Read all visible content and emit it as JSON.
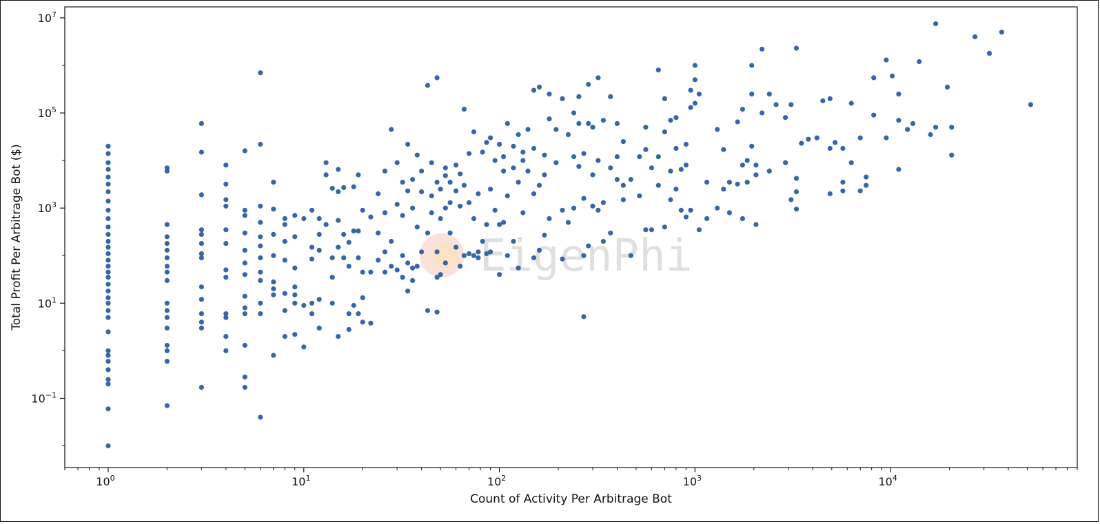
{
  "chart_data": {
    "type": "scatter",
    "xlabel": "Count of Activity Per Arbitrage Bot",
    "ylabel": "Total Profit Per Arbitrage Bot ($)",
    "x_scale": "log",
    "y_scale": "log",
    "xlim": [
      0.6,
      90000
    ],
    "ylim": [
      0.0035,
      17000000
    ],
    "x_ticks": [
      {
        "value": 1,
        "base": "10",
        "exp": "0"
      },
      {
        "value": 10,
        "base": "10",
        "exp": "1"
      },
      {
        "value": 100,
        "base": "10",
        "exp": "2"
      },
      {
        "value": 1000,
        "base": "10",
        "exp": "3"
      },
      {
        "value": 10000,
        "base": "10",
        "exp": "4"
      }
    ],
    "y_ticks": [
      {
        "value": 0.1,
        "base": "10",
        "exp": "−1"
      },
      {
        "value": 10,
        "base": "10",
        "exp": "1"
      },
      {
        "value": 1000,
        "base": "10",
        "exp": "3"
      },
      {
        "value": 100000,
        "base": "10",
        "exp": "5"
      },
      {
        "value": 10000000,
        "base": "10",
        "exp": "7"
      }
    ],
    "marker_color": "#3567a8",
    "grid": false,
    "watermark": "EigenPhi",
    "points": [
      [
        1,
        0.01
      ],
      [
        1,
        0.06
      ],
      [
        1,
        0.2
      ],
      [
        1,
        0.25
      ],
      [
        1,
        0.4
      ],
      [
        1,
        0.6
      ],
      [
        1,
        0.8
      ],
      [
        1,
        1
      ],
      [
        1,
        2.5
      ],
      [
        1,
        5
      ],
      [
        1,
        7
      ],
      [
        1,
        10
      ],
      [
        1,
        13
      ],
      [
        1,
        18
      ],
      [
        1,
        25
      ],
      [
        1,
        35
      ],
      [
        1,
        45
      ],
      [
        1,
        60
      ],
      [
        1,
        80
      ],
      [
        1,
        110
      ],
      [
        1,
        150
      ],
      [
        1,
        200
      ],
      [
        1,
        280
      ],
      [
        1,
        400
      ],
      [
        1,
        600
      ],
      [
        1,
        900
      ],
      [
        1,
        1400
      ],
      [
        1,
        2200
      ],
      [
        1,
        3200
      ],
      [
        1,
        4500
      ],
      [
        1,
        6500
      ],
      [
        1,
        9000
      ],
      [
        1,
        14000
      ],
      [
        1,
        20000
      ],
      [
        2,
        0.07
      ],
      [
        2,
        0.6
      ],
      [
        2,
        1
      ],
      [
        2,
        1.3
      ],
      [
        2,
        3
      ],
      [
        2,
        5
      ],
      [
        2,
        7
      ],
      [
        2,
        10
      ],
      [
        2,
        30
      ],
      [
        2,
        45
      ],
      [
        2,
        60
      ],
      [
        2,
        90
      ],
      [
        2,
        130
      ],
      [
        2,
        180
      ],
      [
        2,
        250
      ],
      [
        2,
        450
      ],
      [
        2,
        6000
      ],
      [
        2,
        7000
      ],
      [
        3,
        0.17
      ],
      [
        3,
        3
      ],
      [
        3,
        4
      ],
      [
        3,
        6
      ],
      [
        3,
        12
      ],
      [
        3,
        22
      ],
      [
        3,
        90
      ],
      [
        3,
        110
      ],
      [
        3,
        180
      ],
      [
        3,
        280
      ],
      [
        3,
        350
      ],
      [
        3,
        1900
      ],
      [
        3,
        15000
      ],
      [
        3,
        60000
      ],
      [
        4,
        1
      ],
      [
        4,
        2
      ],
      [
        4,
        5
      ],
      [
        4,
        6
      ],
      [
        4,
        35
      ],
      [
        4,
        50
      ],
      [
        4,
        180
      ],
      [
        4,
        350
      ],
      [
        4,
        1100
      ],
      [
        4,
        1500
      ],
      [
        4,
        3200
      ],
      [
        4,
        8000
      ],
      [
        5,
        0.17
      ],
      [
        5,
        0.28
      ],
      [
        5,
        1.3
      ],
      [
        5,
        6
      ],
      [
        5,
        8
      ],
      [
        5,
        14
      ],
      [
        5,
        40
      ],
      [
        5,
        70
      ],
      [
        5,
        130
      ],
      [
        5,
        300
      ],
      [
        5,
        700
      ],
      [
        5,
        900
      ],
      [
        5,
        16000
      ],
      [
        6,
        0.04
      ],
      [
        6,
        6
      ],
      [
        6,
        10
      ],
      [
        6,
        30
      ],
      [
        6,
        45
      ],
      [
        6,
        90
      ],
      [
        6,
        160
      ],
      [
        6,
        250
      ],
      [
        6,
        500
      ],
      [
        6,
        1100
      ],
      [
        6,
        22000
      ],
      [
        6,
        700000
      ],
      [
        7,
        0.8
      ],
      [
        7,
        15
      ],
      [
        7,
        20
      ],
      [
        7,
        28
      ],
      [
        7,
        100
      ],
      [
        7,
        280
      ],
      [
        7,
        950
      ],
      [
        7,
        3500
      ],
      [
        8,
        2
      ],
      [
        8,
        7
      ],
      [
        8,
        16
      ],
      [
        8,
        80
      ],
      [
        8,
        200
      ],
      [
        8,
        450
      ],
      [
        8,
        600
      ],
      [
        9,
        2.2
      ],
      [
        9,
        10
      ],
      [
        9,
        15
      ],
      [
        9,
        22
      ],
      [
        9,
        55
      ],
      [
        9,
        250
      ],
      [
        9,
        700
      ],
      [
        10,
        1.2
      ],
      [
        10,
        9
      ],
      [
        10,
        600
      ],
      [
        11,
        6
      ],
      [
        11,
        10
      ],
      [
        11,
        85
      ],
      [
        11,
        150
      ],
      [
        11,
        900
      ],
      [
        12,
        3
      ],
      [
        12,
        12
      ],
      [
        12,
        130
      ],
      [
        12,
        280
      ],
      [
        12,
        600
      ],
      [
        13,
        450
      ],
      [
        13,
        5000
      ],
      [
        13,
        9000
      ],
      [
        14,
        10
      ],
      [
        14,
        35
      ],
      [
        14,
        90
      ],
      [
        14,
        2600
      ],
      [
        15,
        2
      ],
      [
        15,
        150
      ],
      [
        15,
        550
      ],
      [
        15,
        2200
      ],
      [
        15,
        6500
      ],
      [
        16,
        90
      ],
      [
        16,
        280
      ],
      [
        16,
        2700
      ],
      [
        17,
        2.8
      ],
      [
        17,
        6
      ],
      [
        17,
        60
      ],
      [
        17,
        190
      ],
      [
        18,
        9
      ],
      [
        18,
        2800
      ],
      [
        18,
        330
      ],
      [
        19,
        6
      ],
      [
        19,
        90
      ],
      [
        19,
        330
      ],
      [
        19,
        5000
      ],
      [
        20,
        4
      ],
      [
        20,
        13
      ],
      [
        20,
        45
      ],
      [
        20,
        900
      ],
      [
        22,
        3.8
      ],
      [
        22,
        45
      ],
      [
        22,
        650
      ],
      [
        24,
        80
      ],
      [
        24,
        300
      ],
      [
        24,
        2000
      ],
      [
        26,
        45
      ],
      [
        26,
        120
      ],
      [
        26,
        800
      ],
      [
        26,
        6000
      ],
      [
        28,
        60
      ],
      [
        28,
        45000
      ],
      [
        28,
        200
      ],
      [
        30,
        50
      ],
      [
        30,
        1200
      ],
      [
        30,
        9000
      ],
      [
        32,
        35
      ],
      [
        32,
        100
      ],
      [
        32,
        3500
      ],
      [
        32,
        700
      ],
      [
        34,
        18
      ],
      [
        34,
        70
      ],
      [
        34,
        22000
      ],
      [
        34,
        2300
      ],
      [
        36,
        30
      ],
      [
        36,
        55
      ],
      [
        36,
        1000
      ],
      [
        36,
        4000
      ],
      [
        38,
        60
      ],
      [
        38,
        400
      ],
      [
        38,
        13000
      ],
      [
        40,
        120
      ],
      [
        40,
        2200
      ],
      [
        40,
        6000
      ],
      [
        43,
        7
      ],
      [
        43,
        300
      ],
      [
        43,
        380000
      ],
      [
        45,
        800
      ],
      [
        45,
        1800
      ],
      [
        45,
        9000
      ],
      [
        48,
        6.5
      ],
      [
        48,
        120
      ],
      [
        48,
        35
      ],
      [
        48,
        3500
      ],
      [
        48,
        550000
      ],
      [
        50,
        40
      ],
      [
        50,
        600
      ],
      [
        50,
        2500
      ],
      [
        53,
        70
      ],
      [
        53,
        1000
      ],
      [
        53,
        4800
      ],
      [
        53,
        7000
      ],
      [
        56,
        300
      ],
      [
        56,
        1300
      ],
      [
        56,
        3500
      ],
      [
        60,
        150
      ],
      [
        60,
        2300
      ],
      [
        60,
        8000
      ],
      [
        63,
        60
      ],
      [
        63,
        1100
      ],
      [
        63,
        5200
      ],
      [
        66,
        100
      ],
      [
        66,
        3000
      ],
      [
        66,
        120000
      ],
      [
        70,
        110
      ],
      [
        70,
        1300
      ],
      [
        70,
        14000
      ],
      [
        74,
        100
      ],
      [
        74,
        600
      ],
      [
        74,
        40000
      ],
      [
        78,
        90
      ],
      [
        78,
        120
      ],
      [
        78,
        2000
      ],
      [
        82,
        200
      ],
      [
        82,
        15000
      ],
      [
        86,
        110
      ],
      [
        86,
        450
      ],
      [
        86,
        24000
      ],
      [
        90,
        120
      ],
      [
        90,
        2500
      ],
      [
        90,
        30000
      ],
      [
        95,
        900
      ],
      [
        95,
        10000
      ],
      [
        100,
        40
      ],
      [
        100,
        450
      ],
      [
        100,
        22000
      ],
      [
        105,
        500
      ],
      [
        105,
        6000
      ],
      [
        105,
        12000
      ],
      [
        110,
        100
      ],
      [
        110,
        1800
      ],
      [
        110,
        60000
      ],
      [
        118,
        7000
      ],
      [
        118,
        200
      ],
      [
        118,
        20000
      ],
      [
        125,
        55
      ],
      [
        125,
        3500
      ],
      [
        125,
        35000
      ],
      [
        132,
        800
      ],
      [
        132,
        10000
      ],
      [
        132,
        15000
      ],
      [
        140,
        6000
      ],
      [
        140,
        45000
      ],
      [
        150,
        90
      ],
      [
        150,
        2000
      ],
      [
        150,
        18000
      ],
      [
        150,
        300000
      ],
      [
        160,
        130
      ],
      [
        160,
        3000
      ],
      [
        160,
        350000
      ],
      [
        170,
        270
      ],
      [
        170,
        5000
      ],
      [
        170,
        13000
      ],
      [
        180,
        600
      ],
      [
        180,
        250000
      ],
      [
        180,
        75000
      ],
      [
        195,
        9000
      ],
      [
        195,
        45000
      ],
      [
        210,
        85
      ],
      [
        210,
        900
      ],
      [
        210,
        200000
      ],
      [
        225,
        500
      ],
      [
        225,
        35000
      ],
      [
        240,
        1000
      ],
      [
        240,
        12000
      ],
      [
        240,
        100000
      ],
      [
        255,
        7500
      ],
      [
        255,
        60000
      ],
      [
        255,
        220000
      ],
      [
        270,
        5.2
      ],
      [
        270,
        100
      ],
      [
        270,
        14000
      ],
      [
        270,
        1600
      ],
      [
        285,
        60000
      ],
      [
        285,
        400000
      ],
      [
        285,
        160
      ],
      [
        300,
        1100
      ],
      [
        300,
        5000
      ],
      [
        300,
        50000
      ],
      [
        320,
        900
      ],
      [
        320,
        10000
      ],
      [
        320,
        550000
      ],
      [
        340,
        200
      ],
      [
        340,
        1300
      ],
      [
        340,
        70000
      ],
      [
        370,
        300
      ],
      [
        370,
        7000
      ],
      [
        370,
        220000
      ],
      [
        400,
        4000
      ],
      [
        400,
        12000
      ],
      [
        400,
        60000
      ],
      [
        430,
        1500
      ],
      [
        430,
        25000
      ],
      [
        430,
        3000
      ],
      [
        470,
        100
      ],
      [
        470,
        4000
      ],
      [
        520,
        1800
      ],
      [
        520,
        12000
      ],
      [
        560,
        350
      ],
      [
        560,
        50000
      ],
      [
        560,
        17000
      ],
      [
        600,
        350
      ],
      [
        600,
        7000
      ],
      [
        650,
        3000
      ],
      [
        650,
        12000
      ],
      [
        650,
        800000
      ],
      [
        700,
        400
      ],
      [
        700,
        200000
      ],
      [
        700,
        40000
      ],
      [
        750,
        6000
      ],
      [
        750,
        70000
      ],
      [
        750,
        1500
      ],
      [
        800,
        2500
      ],
      [
        800,
        18000
      ],
      [
        800,
        80000
      ],
      [
        850,
        900
      ],
      [
        850,
        6500
      ],
      [
        900,
        650
      ],
      [
        900,
        22000
      ],
      [
        900,
        8000
      ],
      [
        950,
        900
      ],
      [
        950,
        130000
      ],
      [
        950,
        300000
      ],
      [
        1000,
        160000
      ],
      [
        1000,
        500000
      ],
      [
        1000,
        1000000
      ],
      [
        1050,
        350
      ],
      [
        1050,
        250000
      ],
      [
        1150,
        3500
      ],
      [
        1150,
        600
      ],
      [
        1300,
        45000
      ],
      [
        1300,
        1000
      ],
      [
        1400,
        17000
      ],
      [
        1400,
        2500
      ],
      [
        1500,
        800
      ],
      [
        1500,
        3500
      ],
      [
        1650,
        3200
      ],
      [
        1650,
        65000
      ],
      [
        1750,
        8000
      ],
      [
        1750,
        120000
      ],
      [
        1750,
        600
      ],
      [
        1850,
        10000
      ],
      [
        1850,
        3500
      ],
      [
        1950,
        1000000
      ],
      [
        1950,
        250000
      ],
      [
        1950,
        20000
      ],
      [
        2050,
        450
      ],
      [
        2050,
        5000
      ],
      [
        2050,
        8000
      ],
      [
        2200,
        2200000
      ],
      [
        2200,
        100000
      ],
      [
        2400,
        6000
      ],
      [
        2400,
        250000
      ],
      [
        2600,
        150000
      ],
      [
        2900,
        80000
      ],
      [
        2900,
        9000
      ],
      [
        3100,
        1500
      ],
      [
        3100,
        150000
      ],
      [
        3300,
        2200
      ],
      [
        3300,
        4200
      ],
      [
        3300,
        2300000
      ],
      [
        3300,
        950
      ],
      [
        3500,
        23000
      ],
      [
        3800,
        28000
      ],
      [
        4200,
        30000
      ],
      [
        4500,
        180000
      ],
      [
        4900,
        18000
      ],
      [
        4900,
        200000
      ],
      [
        4900,
        2000
      ],
      [
        5200,
        24000
      ],
      [
        5700,
        3500
      ],
      [
        5700,
        18000
      ],
      [
        5700,
        2300
      ],
      [
        6300,
        9000
      ],
      [
        6300,
        160000
      ],
      [
        7000,
        2300
      ],
      [
        7000,
        30000
      ],
      [
        7500,
        4500
      ],
      [
        7500,
        3000
      ],
      [
        8200,
        90000
      ],
      [
        8200,
        550000
      ],
      [
        9500,
        1300000
      ],
      [
        9500,
        30000
      ],
      [
        10200,
        600000
      ],
      [
        11000,
        250000
      ],
      [
        11000,
        70000
      ],
      [
        11000,
        6500
      ],
      [
        12200,
        45000
      ],
      [
        13000,
        60000
      ],
      [
        14000,
        1200000
      ],
      [
        16000,
        35000
      ],
      [
        17000,
        50000
      ],
      [
        17000,
        7500000
      ],
      [
        19500,
        350000
      ],
      [
        20500,
        13000
      ],
      [
        20500,
        50000
      ],
      [
        27000,
        4000000
      ],
      [
        32000,
        1800000
      ],
      [
        37000,
        5000000
      ],
      [
        52000,
        150000
      ]
    ]
  }
}
